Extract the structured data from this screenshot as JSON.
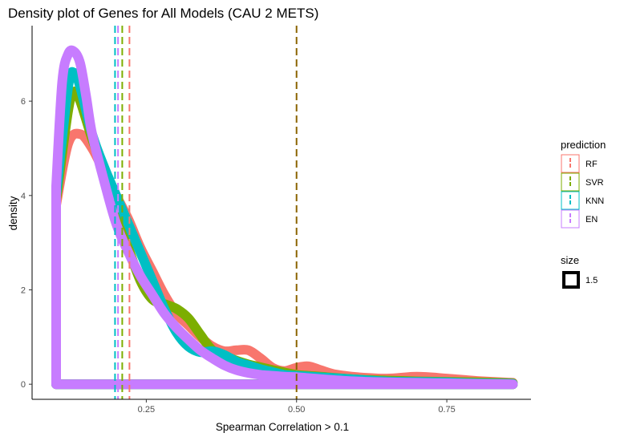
{
  "chart_data": {
    "type": "density",
    "title": "Density plot of Genes for All Models (CAU 2 METS)",
    "xlabel": "Spearman Correlation > 0.1",
    "ylabel": "density",
    "xlim": [
      0.06,
      0.89
    ],
    "ylim": [
      -0.32,
      7.6
    ],
    "xticks": [
      0.25,
      0.5,
      0.75
    ],
    "xtick_labels": [
      "0.25",
      "0.50",
      "0.75"
    ],
    "yticks": [
      0,
      2,
      4,
      6
    ],
    "ytick_labels": [
      "0",
      "2",
      "4",
      "6"
    ],
    "grid": false,
    "legend": {
      "title": "prediction",
      "position": "right"
    },
    "size_legend": {
      "title": "size",
      "label": "1.5"
    },
    "series": [
      {
        "name": "RF",
        "color": "#F8766D",
        "x": [
          0.1,
          0.12,
          0.14,
          0.16,
          0.18,
          0.2,
          0.22,
          0.24,
          0.26,
          0.28,
          0.3,
          0.32,
          0.34,
          0.36,
          0.38,
          0.4,
          0.42,
          0.44,
          0.46,
          0.48,
          0.5,
          0.52,
          0.54,
          0.56,
          0.58,
          0.6,
          0.65,
          0.7,
          0.75,
          0.8,
          0.86
        ],
        "y": [
          3.8,
          5.1,
          5.3,
          5.0,
          4.5,
          4.0,
          3.5,
          2.9,
          2.4,
          1.9,
          1.5,
          1.25,
          1.0,
          0.8,
          0.7,
          0.72,
          0.72,
          0.55,
          0.35,
          0.28,
          0.35,
          0.38,
          0.3,
          0.22,
          0.18,
          0.15,
          0.12,
          0.16,
          0.12,
          0.07,
          0.03
        ]
      },
      {
        "name": "SVR",
        "color": "#7CAE00",
        "x": [
          0.1,
          0.12,
          0.13,
          0.14,
          0.16,
          0.18,
          0.2,
          0.22,
          0.24,
          0.26,
          0.28,
          0.3,
          0.32,
          0.34,
          0.36,
          0.38,
          0.4,
          0.42,
          0.44,
          0.46,
          0.48,
          0.5,
          0.55,
          0.6,
          0.65,
          0.7,
          0.75,
          0.8,
          0.86
        ],
        "y": [
          3.9,
          5.8,
          6.2,
          6.0,
          5.2,
          4.5,
          3.7,
          2.9,
          2.2,
          1.8,
          1.7,
          1.6,
          1.4,
          1.05,
          0.72,
          0.6,
          0.5,
          0.42,
          0.36,
          0.3,
          0.25,
          0.2,
          0.15,
          0.1,
          0.08,
          0.06,
          0.05,
          0.04,
          0.02
        ]
      },
      {
        "name": "KNN",
        "color": "#00BFC4",
        "x": [
          0.1,
          0.12,
          0.13,
          0.14,
          0.16,
          0.18,
          0.2,
          0.22,
          0.24,
          0.26,
          0.28,
          0.3,
          0.32,
          0.34,
          0.36,
          0.38,
          0.4,
          0.42,
          0.44,
          0.46,
          0.48,
          0.5,
          0.55,
          0.6,
          0.65,
          0.7,
          0.75,
          0.8,
          0.86
        ],
        "y": [
          4.0,
          6.3,
          6.6,
          6.3,
          5.3,
          4.6,
          4.0,
          3.4,
          2.8,
          2.2,
          1.6,
          1.1,
          0.8,
          0.68,
          0.7,
          0.62,
          0.48,
          0.4,
          0.32,
          0.26,
          0.2,
          0.18,
          0.14,
          0.1,
          0.06,
          0.05,
          0.04,
          0.02,
          0.01
        ]
      },
      {
        "name": "EN",
        "color": "#C77CFF",
        "x": [
          0.1,
          0.11,
          0.12,
          0.13,
          0.14,
          0.15,
          0.16,
          0.18,
          0.2,
          0.22,
          0.24,
          0.26,
          0.28,
          0.3,
          0.32,
          0.34,
          0.36,
          0.38,
          0.4,
          0.42,
          0.44,
          0.46,
          0.48,
          0.5,
          0.55,
          0.6,
          0.65,
          0.7,
          0.75,
          0.8,
          0.86
        ],
        "y": [
          4.2,
          6.4,
          7.0,
          7.05,
          6.8,
          6.1,
          5.3,
          4.3,
          3.4,
          2.8,
          2.3,
          1.9,
          1.5,
          1.2,
          0.95,
          0.72,
          0.55,
          0.4,
          0.3,
          0.24,
          0.2,
          0.18,
          0.16,
          0.15,
          0.1,
          0.06,
          0.04,
          0.03,
          0.02,
          0.01,
          0.0
        ]
      }
    ],
    "vlines": [
      {
        "series": "RF",
        "x": 0.222,
        "color": "#F8766D",
        "style": "dashed"
      },
      {
        "series": "SVR",
        "x": 0.21,
        "color": "#7CAE00",
        "style": "dashed"
      },
      {
        "series": "KNN",
        "x": 0.198,
        "color": "#00BFC4",
        "style": "dashed"
      },
      {
        "series": "EN",
        "x": 0.203,
        "color": "#C77CFF",
        "style": "dashed"
      },
      {
        "series": "all",
        "x": 0.5,
        "color": "#8B6400",
        "style": "dashed"
      }
    ]
  }
}
